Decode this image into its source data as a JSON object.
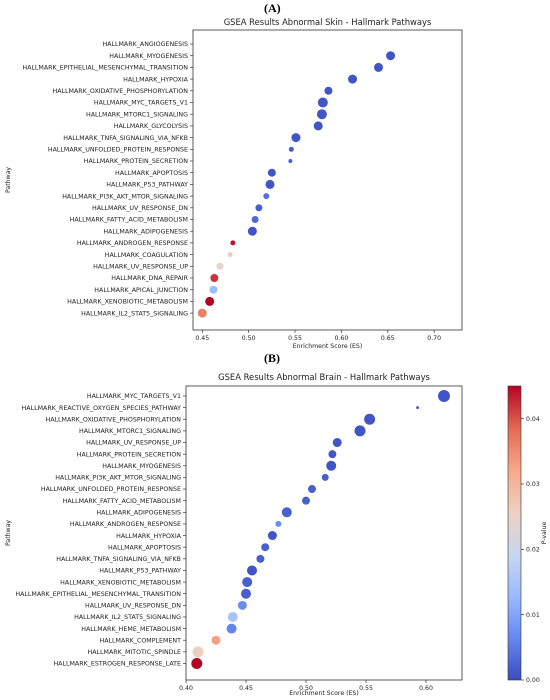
{
  "panel_labels": [
    "(A)",
    "(B)"
  ],
  "colorbar": {
    "label": "P-value",
    "ticks": [
      0.0,
      0.01,
      0.02,
      0.03,
      0.04
    ],
    "tick_labels": [
      "0.00",
      "0.01",
      "0.02",
      "0.03",
      "0.04"
    ],
    "range": [
      0,
      0.045
    ],
    "colormap": [
      "#3b4cc0",
      "#6788ee",
      "#9abbff",
      "#c9d7f0",
      "#edd1c2",
      "#f7a889",
      "#e26952",
      "#b40426"
    ]
  },
  "chart_data": [
    {
      "type": "scatter",
      "title": "GSEA Results Abnormal Skin - Hallmark Pathways",
      "xlabel": "Enrichment Score (ES)",
      "ylabel": "Pathway",
      "xlim": [
        0.44,
        0.73
      ],
      "xticks": [
        0.45,
        0.5,
        0.55,
        0.6,
        0.65,
        0.7
      ],
      "xtick_labels": [
        "0.45",
        "0.50",
        "0.55",
        "0.60",
        "0.65",
        "0.70"
      ],
      "grid": false,
      "points": [
        {
          "pathway": "HALLMARK_ANGIOGENESIS",
          "es": null,
          "p": null,
          "size": null
        },
        {
          "pathway": "HALLMARK_MYOGENESIS",
          "es": 0.653,
          "p": 0.001,
          "size": 9
        },
        {
          "pathway": "HALLMARK_EPITHELIAL_MESENCHYMAL_TRANSITION",
          "es": 0.64,
          "p": 0.001,
          "size": 9
        },
        {
          "pathway": "HALLMARK_HYPOXIA",
          "es": 0.612,
          "p": 0.001,
          "size": 9
        },
        {
          "pathway": "HALLMARK_OXIDATIVE_PHOSPHORYLATION",
          "es": 0.586,
          "p": 0.001,
          "size": 8
        },
        {
          "pathway": "HALLMARK_MYC_TARGETS_V1",
          "es": 0.58,
          "p": 0.001,
          "size": 10
        },
        {
          "pathway": "HALLMARK_MTORC1_SIGNALING",
          "es": 0.579,
          "p": 0.001,
          "size": 10
        },
        {
          "pathway": "HALLMARK_GLYCOLYSIS",
          "es": 0.575,
          "p": 0.001,
          "size": 9
        },
        {
          "pathway": "HALLMARK_TNFA_SIGNALING_VIA_NFKB",
          "es": 0.551,
          "p": 0.001,
          "size": 9
        },
        {
          "pathway": "HALLMARK_UNFOLDED_PROTEIN_RESPONSE",
          "es": 0.546,
          "p": 0.002,
          "size": 5
        },
        {
          "pathway": "HALLMARK_PROTEIN_SECRETION",
          "es": 0.545,
          "p": 0.002,
          "size": 4
        },
        {
          "pathway": "HALLMARK_APOPTOSIS",
          "es": 0.525,
          "p": 0.001,
          "size": 8
        },
        {
          "pathway": "HALLMARK_P53_PATHWAY",
          "es": 0.523,
          "p": 0.001,
          "size": 9
        },
        {
          "pathway": "HALLMARK_PI3K_AKT_MTOR_SIGNALING",
          "es": 0.519,
          "p": 0.004,
          "size": 6
        },
        {
          "pathway": "HALLMARK_UV_RESPONSE_DN",
          "es": 0.511,
          "p": 0.002,
          "size": 7
        },
        {
          "pathway": "HALLMARK_FATTY_ACID_METABOLISM",
          "es": 0.507,
          "p": 0.003,
          "size": 7
        },
        {
          "pathway": "HALLMARK_ADIPOGENESIS",
          "es": 0.504,
          "p": 0.001,
          "size": 9
        },
        {
          "pathway": "HALLMARK_ANDROGEN_RESPONSE",
          "es": 0.483,
          "p": 0.044,
          "size": 5
        },
        {
          "pathway": "HALLMARK_COAGULATION",
          "es": 0.48,
          "p": 0.026,
          "size": 5
        },
        {
          "pathway": "HALLMARK_UV_RESPONSE_UP",
          "es": 0.469,
          "p": 0.025,
          "size": 7
        },
        {
          "pathway": "HALLMARK_DNA_REPAIR",
          "es": 0.463,
          "p": 0.042,
          "size": 8
        },
        {
          "pathway": "HALLMARK_APICAL_JUNCTION",
          "es": 0.462,
          "p": 0.013,
          "size": 8
        },
        {
          "pathway": "HALLMARK_XENOBIOTIC_METABOLISM",
          "es": 0.458,
          "p": 0.046,
          "size": 9
        },
        {
          "pathway": "HALLMARK_IL2_STAT5_SIGNALING",
          "es": 0.45,
          "p": 0.036,
          "size": 9
        }
      ]
    },
    {
      "type": "scatter",
      "title": "GSEA Results Abnormal Brain - Hallmark Pathways",
      "xlabel": "Enrichment Score (ES)",
      "ylabel": "Pathway",
      "xlim": [
        0.4,
        0.63
      ],
      "xticks": [
        0.4,
        0.45,
        0.5,
        0.55,
        0.6
      ],
      "xtick_labels": [
        "0.40",
        "0.45",
        "0.50",
        "0.55",
        "0.60"
      ],
      "grid": false,
      "points": [
        {
          "pathway": "HALLMARK_MYC_TARGETS_V1",
          "es": 0.615,
          "p": 0.001,
          "size": 12
        },
        {
          "pathway": "HALLMARK_REACTIVE_OXYGEN_SPECIES_PATHWAY",
          "es": 0.593,
          "p": 0.002,
          "size": 3
        },
        {
          "pathway": "HALLMARK_OXIDATIVE_PHOSPHORYLATION",
          "es": 0.553,
          "p": 0.001,
          "size": 11
        },
        {
          "pathway": "HALLMARK_MTORC1_SIGNALING",
          "es": 0.545,
          "p": 0.001,
          "size": 11
        },
        {
          "pathway": "HALLMARK_UV_RESPONSE_UP",
          "es": 0.526,
          "p": 0.001,
          "size": 9
        },
        {
          "pathway": "HALLMARK_PROTEIN_SECRETION",
          "es": 0.522,
          "p": 0.001,
          "size": 8
        },
        {
          "pathway": "HALLMARK_MYOGENESIS",
          "es": 0.521,
          "p": 0.001,
          "size": 10
        },
        {
          "pathway": "HALLMARK_PI3K_AKT_MTOR_SIGNALING",
          "es": 0.516,
          "p": 0.002,
          "size": 7
        },
        {
          "pathway": "HALLMARK_UNFOLDED_PROTEIN_RESPONSE",
          "es": 0.505,
          "p": 0.002,
          "size": 8
        },
        {
          "pathway": "HALLMARK_FATTY_ACID_METABOLISM",
          "es": 0.5,
          "p": 0.002,
          "size": 8
        },
        {
          "pathway": "HALLMARK_ADIPOGENESIS",
          "es": 0.484,
          "p": 0.002,
          "size": 10
        },
        {
          "pathway": "HALLMARK_ANDROGEN_RESPONSE",
          "es": 0.477,
          "p": 0.007,
          "size": 6
        },
        {
          "pathway": "HALLMARK_HYPOXIA",
          "es": 0.472,
          "p": 0.001,
          "size": 9
        },
        {
          "pathway": "HALLMARK_APOPTOSIS",
          "es": 0.466,
          "p": 0.002,
          "size": 8
        },
        {
          "pathway": "HALLMARK_TNFA_SIGNALING_VIA_NFKB",
          "es": 0.462,
          "p": 0.002,
          "size": 8
        },
        {
          "pathway": "HALLMARK_P53_PATHWAY",
          "es": 0.455,
          "p": 0.001,
          "size": 10
        },
        {
          "pathway": "HALLMARK_XENOBIOTIC_METABOLISM",
          "es": 0.451,
          "p": 0.002,
          "size": 10
        },
        {
          "pathway": "HALLMARK_EPITHELIAL_MESENCHYMAL_TRANSITION",
          "es": 0.45,
          "p": 0.002,
          "size": 10
        },
        {
          "pathway": "HALLMARK_UV_RESPONSE_DN",
          "es": 0.447,
          "p": 0.007,
          "size": 9
        },
        {
          "pathway": "HALLMARK_IL2_STAT5_SIGNALING",
          "es": 0.439,
          "p": 0.015,
          "size": 10
        },
        {
          "pathway": "HALLMARK_HEME_METABOLISM",
          "es": 0.438,
          "p": 0.006,
          "size": 10
        },
        {
          "pathway": "HALLMARK_COMPLEMENT",
          "es": 0.425,
          "p": 0.033,
          "size": 9
        },
        {
          "pathway": "HALLMARK_MITOTIC_SPINDLE",
          "es": 0.41,
          "p": 0.026,
          "size": 11
        },
        {
          "pathway": "HALLMARK_ESTROGEN_RESPONSE_LATE",
          "es": 0.409,
          "p": 0.046,
          "size": 11
        }
      ]
    }
  ]
}
